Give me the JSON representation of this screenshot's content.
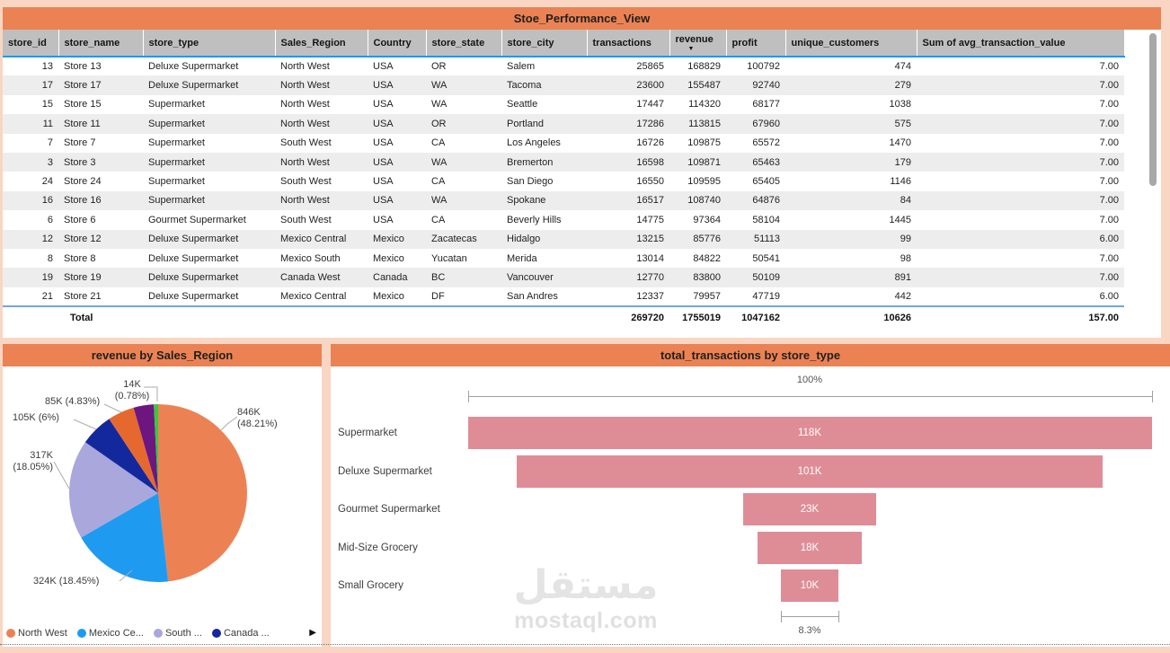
{
  "table": {
    "title": "Stoe_Performance_View",
    "headers": [
      "store_id",
      "store_name",
      "store_type",
      "Sales_Region",
      "Country",
      "store_state",
      "store_city",
      "transactions",
      "revenue",
      "profit",
      "unique_customers",
      "Sum of avg_transaction_value"
    ],
    "sorted_column": "revenue",
    "sort_direction": "descending",
    "sort_indicator": "▼",
    "rows": [
      [
        "13",
        "Store 13",
        "Deluxe Supermarket",
        "North West",
        "USA",
        "OR",
        "Salem",
        "25865",
        "168829",
        "100792",
        "474",
        "7.00"
      ],
      [
        "17",
        "Store 17",
        "Deluxe Supermarket",
        "North West",
        "USA",
        "WA",
        "Tacoma",
        "23600",
        "155487",
        "92740",
        "279",
        "7.00"
      ],
      [
        "15",
        "Store 15",
        "Supermarket",
        "North West",
        "USA",
        "WA",
        "Seattle",
        "17447",
        "114320",
        "68177",
        "1038",
        "7.00"
      ],
      [
        "11",
        "Store 11",
        "Supermarket",
        "North West",
        "USA",
        "OR",
        "Portland",
        "17286",
        "113815",
        "67960",
        "575",
        "7.00"
      ],
      [
        "7",
        "Store 7",
        "Supermarket",
        "South West",
        "USA",
        "CA",
        "Los Angeles",
        "16726",
        "109875",
        "65572",
        "1470",
        "7.00"
      ],
      [
        "3",
        "Store 3",
        "Supermarket",
        "North West",
        "USA",
        "WA",
        "Bremerton",
        "16598",
        "109871",
        "65463",
        "179",
        "7.00"
      ],
      [
        "24",
        "Store 24",
        "Supermarket",
        "South West",
        "USA",
        "CA",
        "San Diego",
        "16550",
        "109595",
        "65405",
        "1146",
        "7.00"
      ],
      [
        "16",
        "Store 16",
        "Supermarket",
        "North West",
        "USA",
        "WA",
        "Spokane",
        "16517",
        "108740",
        "64876",
        "84",
        "7.00"
      ],
      [
        "6",
        "Store 6",
        "Gourmet Supermarket",
        "South West",
        "USA",
        "CA",
        "Beverly Hills",
        "14775",
        "97364",
        "58104",
        "1445",
        "7.00"
      ],
      [
        "12",
        "Store 12",
        "Deluxe Supermarket",
        "Mexico Central",
        "Mexico",
        "Zacatecas",
        "Hidalgo",
        "13215",
        "85776",
        "51113",
        "99",
        "6.00"
      ],
      [
        "8",
        "Store 8",
        "Deluxe Supermarket",
        "Mexico South",
        "Mexico",
        "Yucatan",
        "Merida",
        "13014",
        "84822",
        "50541",
        "98",
        "7.00"
      ],
      [
        "19",
        "Store 19",
        "Deluxe Supermarket",
        "Canada West",
        "Canada",
        "BC",
        "Vancouver",
        "12770",
        "83800",
        "50109",
        "891",
        "7.00"
      ],
      [
        "21",
        "Store 21",
        "Deluxe Supermarket",
        "Mexico Central",
        "Mexico",
        "DF",
        "San Andres",
        "12337",
        "79957",
        "47719",
        "442",
        "6.00"
      ]
    ],
    "total": {
      "label": "Total",
      "transactions": "269720",
      "revenue": "1755019",
      "profit": "1047162",
      "unique_customers": "10626",
      "sum_avg": "157.00"
    }
  },
  "chart_data": [
    {
      "type": "pie",
      "title": "revenue by Sales_Region",
      "unit": "K",
      "slices": [
        {
          "name": "North West",
          "callout": "846K (48.21%)",
          "value": 846,
          "pct": 48.21,
          "color": "#EC8254"
        },
        {
          "name": "Mexico Ce...",
          "callout": "324K (18.45%)",
          "value": 324,
          "pct": 18.45,
          "color": "#1E9BF0"
        },
        {
          "name": "South ...",
          "callout": "317K (18.05%)",
          "value": 317,
          "pct": 18.05,
          "color": "#A9A7DC"
        },
        {
          "name": "Canada ...",
          "callout": "105K (6%)",
          "value": 105,
          "pct": 6.0,
          "color": "#14289E"
        },
        {
          "name": "",
          "callout": "85K (4.83%)",
          "value": 85,
          "pct": 4.83,
          "color": "#E5692F"
        },
        {
          "name": "",
          "callout": "",
          "value": 64,
          "pct": 3.68,
          "color": "#6D1680"
        },
        {
          "name": "",
          "callout": "14K (0.78%)",
          "value": 14,
          "pct": 0.78,
          "color": "#38C840"
        }
      ],
      "legend_visible": [
        "North West",
        "Mexico Ce...",
        "South ...",
        "Canada ..."
      ],
      "legend_more_arrow": "▶",
      "legend_position": "bottom"
    },
    {
      "type": "funnel",
      "title": "total_transactions by store_type",
      "categories": [
        "Supermarket",
        "Deluxe Supermarket",
        "Gourmet Supermarket",
        "Mid-Size Grocery",
        "Small Grocery"
      ],
      "values": [
        118,
        101,
        23,
        18,
        10
      ],
      "value_labels": [
        "118K",
        "101K",
        "23K",
        "18K",
        "10K"
      ],
      "unit": "K",
      "top_annotation": "100%",
      "bottom_annotation": "8.3%",
      "bar_color": "#DE8D97"
    }
  ],
  "watermark": {
    "arabic": "مستقل",
    "domain": "mostaql.com"
  },
  "colors": {
    "page_bg": "#F9D6C3",
    "card_title_bg": "#EB8254",
    "header_bg": "#BFBFBF",
    "row_alt": "#EDEDED",
    "header_underline": "#119BF7",
    "total_topline": "#6FA8DC",
    "funnel_bar": "#DE8D97",
    "scrollbar": "#A8A8A8"
  }
}
